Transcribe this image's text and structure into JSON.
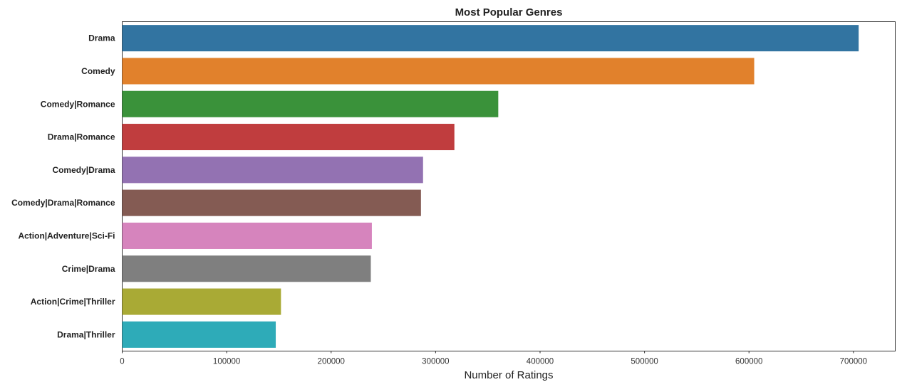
{
  "chart_data": {
    "type": "bar",
    "orientation": "horizontal",
    "title": "Most Popular Genres",
    "xlabel": "Number of Ratings",
    "ylabel": "",
    "xlim": [
      0,
      740000
    ],
    "xticks": [
      0,
      100000,
      200000,
      300000,
      400000,
      500000,
      600000,
      700000
    ],
    "grid": false,
    "categories": [
      "Drama",
      "Comedy",
      "Comedy|Romance",
      "Drama|Romance",
      "Comedy|Drama",
      "Comedy|Drama|Romance",
      "Action|Adventure|Sci-Fi",
      "Crime|Drama",
      "Action|Crime|Thriller",
      "Drama|Thriller"
    ],
    "values": [
      705000,
      605000,
      360000,
      318000,
      288000,
      286000,
      239000,
      238000,
      152000,
      147000
    ],
    "colors": [
      "#3274a1",
      "#e1812c",
      "#3a923a",
      "#c03d3e",
      "#9372b2",
      "#845b53",
      "#d684bd",
      "#7f7f7f",
      "#a9aa35",
      "#2eabb8"
    ]
  }
}
